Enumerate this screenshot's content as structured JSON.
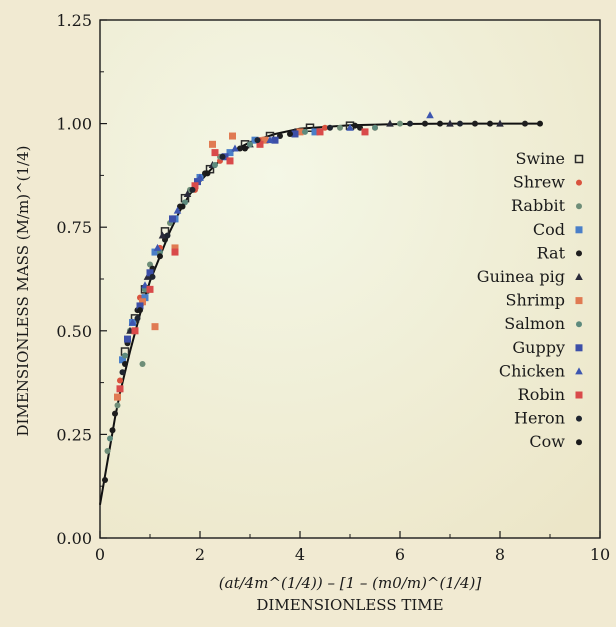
{
  "chart_data": {
    "type": "scatter",
    "title": "",
    "xlabel": "DIMENSIONLESS TIME",
    "xlabel_formula": "(at/4m^(1/4)) – [1 – (m0/m)^(1/4)]",
    "ylabel": "DIMENSIONLESS MASS (M/m)^(1/4)",
    "xlim": [
      0,
      10
    ],
    "ylim": [
      0.0,
      1.25
    ],
    "x_ticks": [
      "0",
      "2",
      "4",
      "6",
      "8",
      "10"
    ],
    "y_ticks": [
      "0.00",
      "0.25",
      "0.50",
      "0.75",
      "1.00",
      "1.25"
    ],
    "grid": false,
    "legend_position": "right",
    "curve": {
      "label": "",
      "points": [
        [
          0,
          0.08
        ],
        [
          0.1,
          0.15
        ],
        [
          0.2,
          0.22
        ],
        [
          0.3,
          0.29
        ],
        [
          0.4,
          0.35
        ],
        [
          0.6,
          0.45
        ],
        [
          0.8,
          0.54
        ],
        [
          1.0,
          0.62
        ],
        [
          1.2,
          0.68
        ],
        [
          1.4,
          0.74
        ],
        [
          1.6,
          0.79
        ],
        [
          1.8,
          0.83
        ],
        [
          2.0,
          0.86
        ],
        [
          2.3,
          0.9
        ],
        [
          2.6,
          0.93
        ],
        [
          3.0,
          0.955
        ],
        [
          3.5,
          0.975
        ],
        [
          4.0,
          0.988
        ],
        [
          5.0,
          0.996
        ],
        [
          6.0,
          0.999
        ],
        [
          7.0,
          1.0
        ],
        [
          8.0,
          1.0
        ],
        [
          8.8,
          1.0
        ]
      ]
    },
    "series": [
      {
        "name": "Swine",
        "color": "#2a2a2a",
        "marker": "square-open",
        "points": [
          [
            0.5,
            0.45
          ],
          [
            0.7,
            0.53
          ],
          [
            0.9,
            0.6
          ],
          [
            1.3,
            0.74
          ],
          [
            1.7,
            0.82
          ],
          [
            2.2,
            0.89
          ],
          [
            2.9,
            0.95
          ],
          [
            3.4,
            0.97
          ],
          [
            4.2,
            0.99
          ],
          [
            5.0,
            0.995
          ]
        ]
      },
      {
        "name": "Shrew",
        "color": "#d9533e",
        "marker": "circle",
        "points": [
          [
            0.4,
            0.38
          ],
          [
            0.8,
            0.58
          ],
          [
            1.2,
            0.7
          ],
          [
            1.9,
            0.84
          ],
          [
            2.4,
            0.91
          ],
          [
            3.2,
            0.96
          ],
          [
            4.5,
            0.99
          ],
          [
            5.5,
            0.99
          ]
        ]
      },
      {
        "name": "Rabbit",
        "color": "#6e8e78",
        "marker": "circle",
        "points": [
          [
            0.15,
            0.21
          ],
          [
            0.35,
            0.32
          ],
          [
            0.6,
            0.5
          ],
          [
            0.85,
            0.42
          ],
          [
            1.0,
            0.66
          ],
          [
            1.4,
            0.76
          ],
          [
            1.8,
            0.84
          ],
          [
            2.4,
            0.92
          ],
          [
            3.3,
            0.96
          ],
          [
            4.8,
            0.99
          ],
          [
            6.0,
            1.0
          ]
        ]
      },
      {
        "name": "Cod",
        "color": "#4a7fc8",
        "marker": "square",
        "points": [
          [
            0.45,
            0.43
          ],
          [
            0.65,
            0.52
          ],
          [
            0.9,
            0.58
          ],
          [
            1.1,
            0.69
          ],
          [
            1.5,
            0.77
          ],
          [
            2.0,
            0.87
          ],
          [
            2.6,
            0.93
          ],
          [
            3.1,
            0.96
          ],
          [
            4.3,
            0.98
          ]
        ]
      },
      {
        "name": "Rat",
        "color": "#1f1f1f",
        "marker": "circle",
        "points": [
          [
            0.3,
            0.3
          ],
          [
            0.55,
            0.47
          ],
          [
            0.75,
            0.55
          ],
          [
            1.05,
            0.65
          ],
          [
            1.3,
            0.72
          ],
          [
            1.6,
            0.8
          ],
          [
            2.1,
            0.88
          ],
          [
            2.8,
            0.94
          ],
          [
            3.6,
            0.97
          ],
          [
            5.2,
            0.99
          ],
          [
            6.5,
            1.0
          ],
          [
            7.5,
            1.0
          ],
          [
            8.5,
            1.0
          ]
        ]
      },
      {
        "name": "Guinea pig",
        "color": "#2a2a3a",
        "marker": "triangle",
        "points": [
          [
            0.6,
            0.5
          ],
          [
            0.95,
            0.63
          ],
          [
            1.25,
            0.73
          ],
          [
            1.75,
            0.83
          ],
          [
            2.25,
            0.9
          ],
          [
            3.0,
            0.95
          ],
          [
            3.9,
            0.98
          ],
          [
            5.8,
            1.0
          ],
          [
            7.0,
            1.0
          ],
          [
            8.0,
            1.0
          ]
        ]
      },
      {
        "name": "Shrimp",
        "color": "#e07a52",
        "marker": "square",
        "points": [
          [
            0.35,
            0.34
          ],
          [
            0.85,
            0.57
          ],
          [
            1.1,
            0.51
          ],
          [
            1.5,
            0.7
          ],
          [
            2.25,
            0.95
          ],
          [
            2.65,
            0.97
          ],
          [
            3.3,
            0.96
          ],
          [
            4.0,
            0.98
          ]
        ]
      },
      {
        "name": "Salmon",
        "color": "#5d8a7d",
        "marker": "circle",
        "points": [
          [
            0.2,
            0.24
          ],
          [
            0.5,
            0.44
          ],
          [
            0.9,
            0.6
          ],
          [
            1.2,
            0.69
          ],
          [
            1.7,
            0.81
          ],
          [
            2.3,
            0.9
          ],
          [
            3.0,
            0.95
          ],
          [
            4.1,
            0.98
          ],
          [
            5.5,
            0.99
          ]
        ]
      },
      {
        "name": "Guppy",
        "color": "#3c4fa8",
        "marker": "square",
        "points": [
          [
            0.55,
            0.48
          ],
          [
            0.8,
            0.56
          ],
          [
            1.0,
            0.64
          ],
          [
            1.45,
            0.77
          ],
          [
            1.95,
            0.86
          ],
          [
            2.5,
            0.92
          ],
          [
            3.5,
            0.96
          ],
          [
            3.9,
            0.975
          ]
        ]
      },
      {
        "name": "Chicken",
        "color": "#3d56b0",
        "marker": "triangle",
        "points": [
          [
            0.65,
            0.52
          ],
          [
            0.9,
            0.61
          ],
          [
            1.15,
            0.7
          ],
          [
            1.55,
            0.79
          ],
          [
            2.0,
            0.87
          ],
          [
            2.7,
            0.94
          ],
          [
            3.4,
            0.96
          ],
          [
            5.0,
            0.99
          ],
          [
            6.6,
            1.02
          ]
        ]
      },
      {
        "name": "Robin",
        "color": "#d94a4a",
        "marker": "square",
        "points": [
          [
            0.4,
            0.36
          ],
          [
            0.7,
            0.5
          ],
          [
            1.0,
            0.6
          ],
          [
            1.5,
            0.69
          ],
          [
            1.9,
            0.85
          ],
          [
            2.3,
            0.93
          ],
          [
            2.6,
            0.91
          ],
          [
            3.2,
            0.95
          ],
          [
            4.4,
            0.98
          ],
          [
            5.3,
            0.98
          ]
        ]
      },
      {
        "name": "Heron",
        "color": "#1f2530",
        "marker": "circle",
        "points": [
          [
            0.45,
            0.4
          ],
          [
            0.75,
            0.53
          ],
          [
            1.05,
            0.63
          ],
          [
            1.35,
            0.73
          ],
          [
            1.85,
            0.84
          ],
          [
            2.45,
            0.92
          ],
          [
            3.15,
            0.96
          ],
          [
            4.6,
            0.99
          ],
          [
            6.2,
            1.0
          ],
          [
            7.2,
            1.0
          ]
        ]
      },
      {
        "name": "Cow",
        "color": "#1a1a1a",
        "marker": "circle",
        "points": [
          [
            0.1,
            0.14
          ],
          [
            0.25,
            0.26
          ],
          [
            0.5,
            0.42
          ],
          [
            0.8,
            0.55
          ],
          [
            1.2,
            0.68
          ],
          [
            1.65,
            0.8
          ],
          [
            2.15,
            0.88
          ],
          [
            2.9,
            0.94
          ],
          [
            3.8,
            0.975
          ],
          [
            5.1,
            0.995
          ],
          [
            6.8,
            1.0
          ],
          [
            7.8,
            1.0
          ],
          [
            8.8,
            1.0
          ]
        ]
      }
    ]
  }
}
